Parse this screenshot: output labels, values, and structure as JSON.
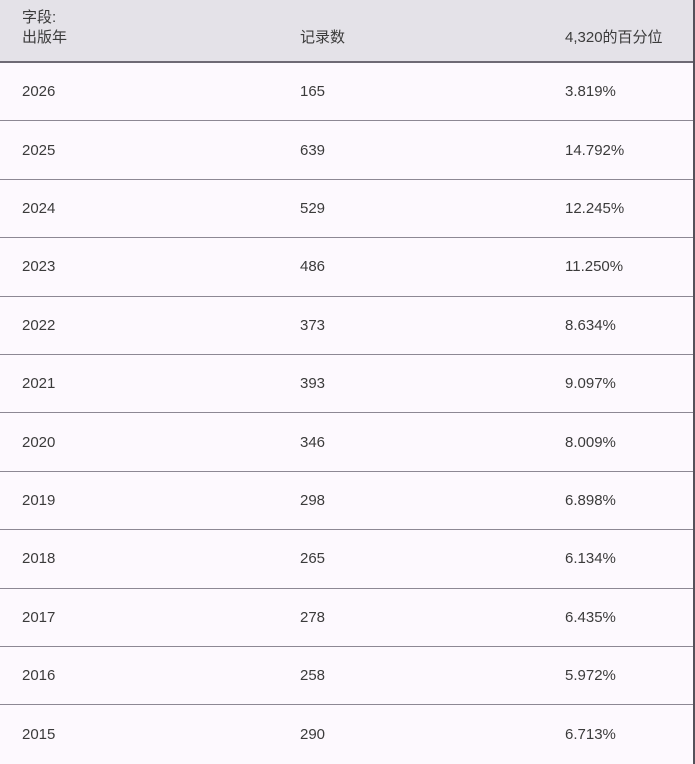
{
  "table": {
    "header": {
      "field_label": "字段:",
      "field_name": "出版年",
      "records_label": "记录数",
      "percentile_label": "4,320的百分位"
    },
    "rows": [
      {
        "year": "2026",
        "count": "165",
        "percent": "3.819%"
      },
      {
        "year": "2025",
        "count": "639",
        "percent": "14.792%"
      },
      {
        "year": "2024",
        "count": "529",
        "percent": "12.245%"
      },
      {
        "year": "2023",
        "count": "486",
        "percent": "11.250%"
      },
      {
        "year": "2022",
        "count": "373",
        "percent": "8.634%"
      },
      {
        "year": "2021",
        "count": "393",
        "percent": "9.097%"
      },
      {
        "year": "2020",
        "count": "346",
        "percent": "8.009%"
      },
      {
        "year": "2019",
        "count": "298",
        "percent": "6.898%"
      },
      {
        "year": "2018",
        "count": "265",
        "percent": "6.134%"
      },
      {
        "year": "2017",
        "count": "278",
        "percent": "6.435%"
      },
      {
        "year": "2016",
        "count": "258",
        "percent": "5.972%"
      },
      {
        "year": "2015",
        "count": "290",
        "percent": "6.713%"
      }
    ],
    "total_records": "4,320"
  },
  "colors": {
    "header_bg": "#e4e2e8",
    "header_border": "#6e6a75",
    "row_bg": "#fdf9fe",
    "row_separator": "#8d8894",
    "text": "#3b3b3b",
    "right_border": "#55515a"
  }
}
